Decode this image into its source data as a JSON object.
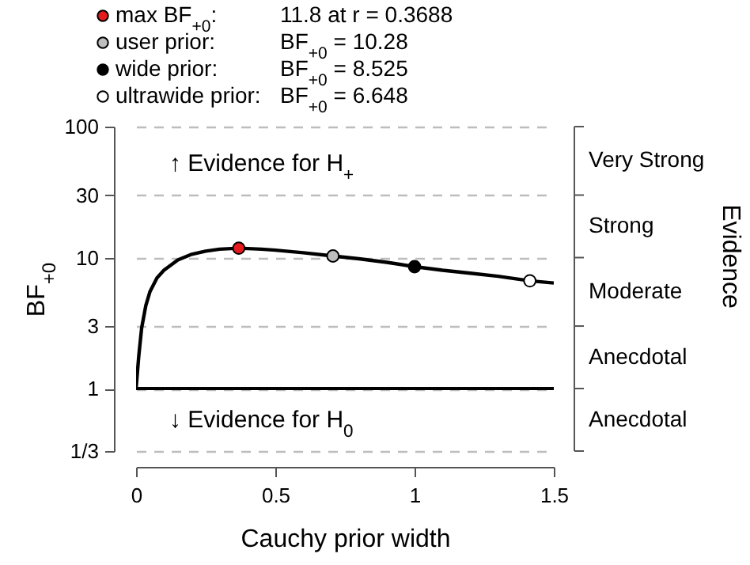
{
  "chart_data": {
    "type": "line",
    "xlabel": "Cauchy prior width",
    "ylabel": "BF$_{+0}$",
    "xlim": [
      0,
      1.5
    ],
    "xticks": [
      0,
      0.5,
      1,
      1.5
    ],
    "ylim": [
      0.3333,
      100
    ],
    "yticks": [
      {
        "value": 0.3333,
        "label": "1/3"
      },
      1,
      3,
      10,
      30,
      100
    ],
    "log": "y",
    "grid": "y",
    "legend": "top",
    "series": [
      {
        "color": "#000000",
        "line_style": "solid",
        "x": [
          0,
          0.01,
          0.02,
          0.035,
          0.05,
          0.075,
          0.1,
          0.15,
          0.2,
          0.25,
          0.3,
          0.3688,
          0.45,
          0.5,
          0.6,
          0.707,
          0.8,
          0.9,
          1,
          1.1,
          1.2,
          1.3,
          1.414,
          1.5
        ],
        "values": [
          1,
          1.8,
          2.9,
          4.3,
          5.5,
          7,
          8,
          9.6,
          10.6,
          11.2,
          11.6,
          11.8,
          11.6,
          11.4,
          10.9,
          10.28,
          9.8,
          9.2,
          8.525,
          8,
          7.6,
          7.2,
          6.648,
          6.4
        ]
      },
      {
        "type": "scatter",
        "name": "max BF$_{+0}$:",
        "color": "#e41a1c",
        "marker": "circle",
        "x": [
          0.3688
        ],
        "values": [
          11.8
        ]
      },
      {
        "type": "scatter",
        "name": "user prior:",
        "color": "#bebebe",
        "marker": "circle",
        "x": [
          0.707
        ],
        "values": [
          10.28
        ]
      },
      {
        "type": "scatter",
        "name": "wide prior:",
        "color": "#000000",
        "marker": "circle",
        "x": [
          1
        ],
        "values": [
          8.525
        ]
      },
      {
        "type": "scatter",
        "name": "ultrawide prior:",
        "color": "#ffffff",
        "marker": "circle",
        "x": [
          1.414
        ],
        "values": [
          6.648
        ]
      }
    ],
    "ref_lines": [
      {
        "axis": "y",
        "value": 1,
        "color": "#000000",
        "line_style": "solid"
      }
    ],
    "annotations": [
      "↑ Evidence for H$_{+}$",
      "↓ Evidence for H$_{0}$",
      "Evidence",
      "11.8 at r = 0.3688",
      "BF$_{+0}$ = 10.28",
      "BF$_{+0}$ = 8.525",
      "BF$_{+0}$ = 6.648",
      "Very Strong",
      "Strong",
      "Moderate",
      "Anecdotal",
      "Anecdotal"
    ]
  }
}
